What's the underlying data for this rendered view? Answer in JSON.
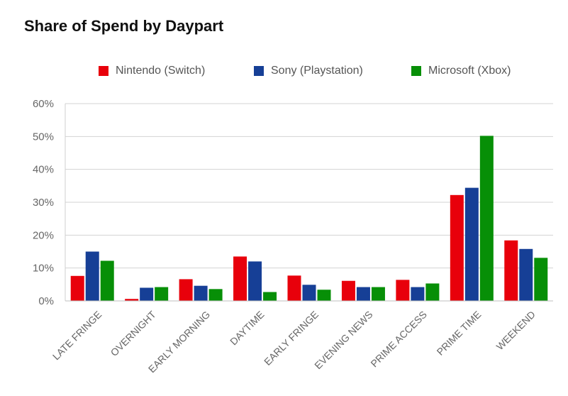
{
  "chart_data": {
    "type": "bar",
    "title": "Share of Spend by Daypart",
    "categories": [
      "LATE FRINGE",
      "OVERNIGHT",
      "EARLY MORNING",
      "DAYTIME",
      "EARLY FRINGE",
      "EVENING NEWS",
      "PRIME ACCESS",
      "PRIME TIME",
      "WEEKEND"
    ],
    "series": [
      {
        "name": "Nintendo (Switch)",
        "color": "#e8000b",
        "values": [
          7.6,
          0.6,
          6.6,
          13.5,
          7.7,
          6.1,
          6.4,
          32.2,
          18.4
        ]
      },
      {
        "name": "Sony (Playstation)",
        "color": "#163f96",
        "values": [
          15.0,
          4.0,
          4.6,
          12.0,
          4.9,
          4.2,
          4.2,
          34.4,
          15.8
        ]
      },
      {
        "name": "Microsoft (Xbox)",
        "color": "#078f07",
        "values": [
          12.2,
          4.2,
          3.6,
          2.7,
          3.4,
          4.2,
          5.3,
          50.2,
          13.1
        ]
      }
    ],
    "ylim": [
      0,
      60
    ],
    "yticks": [
      0,
      10,
      20,
      30,
      40,
      50,
      60
    ],
    "ytick_labels": [
      "0%",
      "10%",
      "20%",
      "30%",
      "40%",
      "50%",
      "60%"
    ],
    "grid": true,
    "legend_position": "top"
  }
}
